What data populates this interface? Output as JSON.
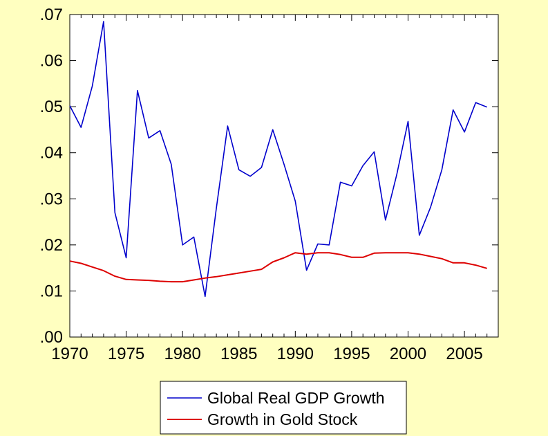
{
  "chart_data": {
    "type": "line",
    "title": "",
    "xlabel": "",
    "ylabel": "",
    "xlim": [
      1970,
      2008
    ],
    "ylim": [
      0,
      0.07
    ],
    "x_ticks": [
      1970,
      1975,
      1980,
      1985,
      1990,
      1995,
      2000,
      2005
    ],
    "x_tick_labels": [
      "1970",
      "1975",
      "1980",
      "1985",
      "1990",
      "1995",
      "2000",
      "2005"
    ],
    "y_ticks": [
      0,
      0.01,
      0.02,
      0.03,
      0.04,
      0.05,
      0.06,
      0.07
    ],
    "y_tick_labels": [
      ".00",
      ".01",
      ".02",
      ".03",
      ".04",
      ".05",
      ".06",
      ".07"
    ],
    "grid": false,
    "legend_position": "bottom-center",
    "x": [
      1970,
      1971,
      1972,
      1973,
      1974,
      1975,
      1976,
      1977,
      1978,
      1979,
      1980,
      1981,
      1982,
      1983,
      1984,
      1985,
      1986,
      1987,
      1988,
      1989,
      1990,
      1991,
      1992,
      1993,
      1994,
      1995,
      1996,
      1997,
      1998,
      1999,
      2000,
      2001,
      2002,
      2003,
      2004,
      2005,
      2006,
      2007
    ],
    "series": [
      {
        "name": "Global Real GDP Growth",
        "color": "#0000cc",
        "values": [
          0.0502,
          0.0455,
          0.0545,
          0.0685,
          0.027,
          0.0172,
          0.0535,
          0.0432,
          0.0448,
          0.0375,
          0.02,
          0.0217,
          0.0088,
          0.028,
          0.0458,
          0.0363,
          0.0349,
          0.0368,
          0.045,
          0.0375,
          0.0295,
          0.0145,
          0.0202,
          0.02,
          0.0336,
          0.0328,
          0.0372,
          0.0402,
          0.0254,
          0.0353,
          0.0468,
          0.0221,
          0.0282,
          0.0363,
          0.0493,
          0.0445,
          0.0509,
          0.0499
        ]
      },
      {
        "name": "Growth in Gold Stock",
        "color": "#dd0000",
        "values": [
          0.0165,
          0.016,
          0.0152,
          0.0144,
          0.0132,
          0.0125,
          0.0124,
          0.0123,
          0.0121,
          0.012,
          0.012,
          0.0124,
          0.0128,
          0.0131,
          0.0135,
          0.0139,
          0.0143,
          0.0147,
          0.0163,
          0.0172,
          0.0183,
          0.018,
          0.0183,
          0.0183,
          0.0179,
          0.0173,
          0.0173,
          0.0182,
          0.0183,
          0.0183,
          0.0183,
          0.018,
          0.0175,
          0.017,
          0.0161,
          0.0161,
          0.0156,
          0.0149
        ]
      }
    ]
  }
}
